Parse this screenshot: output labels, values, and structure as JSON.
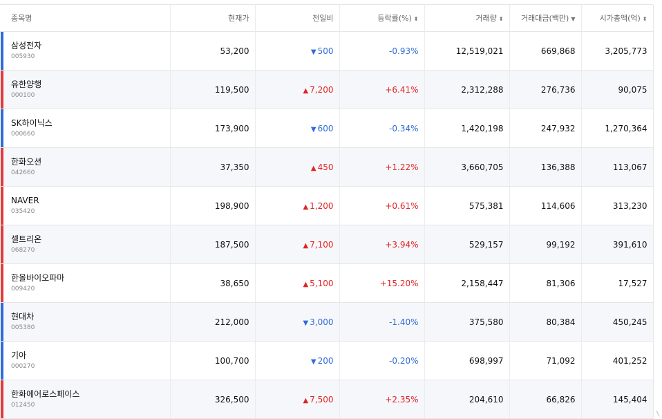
{
  "table": {
    "headers": [
      {
        "label": "종목명",
        "sort": ""
      },
      {
        "label": "현재가",
        "sort": ""
      },
      {
        "label": "전일비",
        "sort": ""
      },
      {
        "label": "등락률(%)",
        "sort": "⬍"
      },
      {
        "label": "거래량",
        "sort": "⬍"
      },
      {
        "label": "거래대금(백만)",
        "sort": "▼"
      },
      {
        "label": "시가총액(억)",
        "sort": "⬍"
      }
    ],
    "rows": [
      {
        "name": "삼성전자",
        "code": "005930",
        "price": "53,200",
        "dir": "down",
        "arrow": "▼",
        "change": "500",
        "rate": "-0.93%",
        "volume": "12,519,021",
        "amount": "669,868",
        "cap": "3,205,773"
      },
      {
        "name": "유한양행",
        "code": "000100",
        "price": "119,500",
        "dir": "up",
        "arrow": "▲",
        "change": "7,200",
        "rate": "+6.41%",
        "volume": "2,312,288",
        "amount": "276,736",
        "cap": "90,075"
      },
      {
        "name": "SK하이닉스",
        "code": "000660",
        "price": "173,900",
        "dir": "down",
        "arrow": "▼",
        "change": "600",
        "rate": "-0.34%",
        "volume": "1,420,198",
        "amount": "247,932",
        "cap": "1,270,364"
      },
      {
        "name": "한화오션",
        "code": "042660",
        "price": "37,350",
        "dir": "up",
        "arrow": "▲",
        "change": "450",
        "rate": "+1.22%",
        "volume": "3,660,705",
        "amount": "136,388",
        "cap": "113,067"
      },
      {
        "name": "NAVER",
        "code": "035420",
        "price": "198,900",
        "dir": "up",
        "arrow": "▲",
        "change": "1,200",
        "rate": "+0.61%",
        "volume": "575,381",
        "amount": "114,606",
        "cap": "313,230"
      },
      {
        "name": "셀트리온",
        "code": "068270",
        "price": "187,500",
        "dir": "up",
        "arrow": "▲",
        "change": "7,100",
        "rate": "+3.94%",
        "volume": "529,157",
        "amount": "99,192",
        "cap": "391,610"
      },
      {
        "name": "한올바이오파마",
        "code": "009420",
        "price": "38,650",
        "dir": "up",
        "arrow": "▲",
        "change": "5,100",
        "rate": "+15.20%",
        "volume": "2,158,447",
        "amount": "81,306",
        "cap": "17,527"
      },
      {
        "name": "현대차",
        "code": "005380",
        "price": "212,000",
        "dir": "down",
        "arrow": "▼",
        "change": "3,000",
        "rate": "-1.40%",
        "volume": "375,580",
        "amount": "80,384",
        "cap": "450,245"
      },
      {
        "name": "기아",
        "code": "000270",
        "price": "100,700",
        "dir": "down",
        "arrow": "▼",
        "change": "200",
        "rate": "-0.20%",
        "volume": "698,997",
        "amount": "71,092",
        "cap": "401,252"
      },
      {
        "name": "한화에어로스페이스",
        "code": "012450",
        "price": "326,500",
        "dir": "up",
        "arrow": "▲",
        "change": "7,500",
        "rate": "+2.35%",
        "volume": "204,610",
        "amount": "66,826",
        "cap": "145,404"
      }
    ]
  },
  "colors": {
    "up": "#e02424",
    "down": "#2f6bd8"
  },
  "icons": {
    "up": "triangle-up-icon",
    "down": "triangle-down-icon",
    "sort": "sort-toggle-icon"
  }
}
